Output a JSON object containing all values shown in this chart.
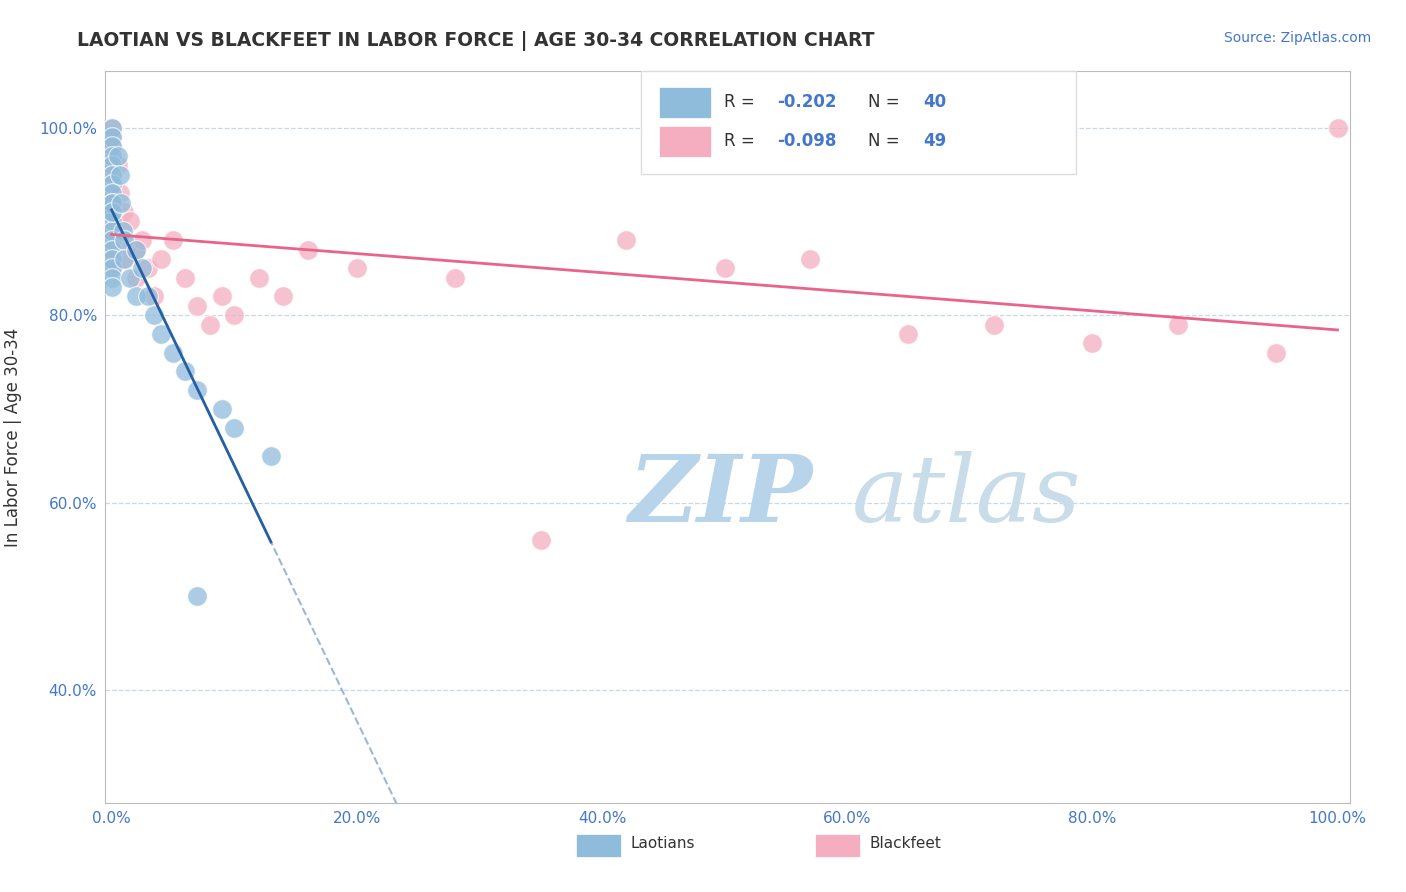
{
  "title": "LAOTIAN VS BLACKFEET IN LABOR FORCE | AGE 30-34 CORRELATION CHART",
  "source_text": "Source: ZipAtlas.com",
  "ylabel": "In Labor Force | Age 30-34",
  "xlim": [
    -0.005,
    1.01
  ],
  "ylim": [
    0.28,
    1.06
  ],
  "xticks": [
    0.0,
    0.2,
    0.4,
    0.6,
    0.8,
    1.0
  ],
  "xticklabels": [
    "0.0%",
    "20.0%",
    "40.0%",
    "60.0%",
    "80.0%",
    "100.0%"
  ],
  "yticks": [
    0.4,
    0.6,
    0.8,
    1.0
  ],
  "yticklabels": [
    "40.0%",
    "60.0%",
    "80.0%",
    "100.0%"
  ],
  "laotian_color": "#8fbcdb",
  "blackfeet_color": "#f4aec0",
  "laotian_line_color": "#2660a4",
  "blackfeet_line_color": "#e8648a",
  "watermark_text_color": "#cce4f4",
  "R_laotian": -0.202,
  "N_laotian": 40,
  "R_blackfeet": -0.098,
  "N_blackfeet": 49,
  "lao_x": [
    0.0,
    0.0,
    0.0,
    0.0,
    0.0,
    0.0,
    0.0,
    0.0,
    0.0,
    0.0,
    0.0,
    0.0,
    0.0,
    0.0,
    0.0,
    0.0,
    0.0,
    0.0,
    0.0,
    0.0,
    0.005,
    0.007,
    0.008,
    0.009,
    0.01,
    0.01,
    0.015,
    0.02,
    0.02,
    0.025,
    0.03,
    0.035,
    0.04,
    0.05,
    0.06,
    0.07,
    0.09,
    0.1,
    0.13,
    0.07
  ],
  "lao_y": [
    1.0,
    0.99,
    0.98,
    0.97,
    0.96,
    0.95,
    0.94,
    0.93,
    0.92,
    0.91,
    0.9,
    0.89,
    0.88,
    0.87,
    0.86,
    0.85,
    0.84,
    0.83,
    0.92,
    0.91,
    0.97,
    0.95,
    0.92,
    0.89,
    0.88,
    0.86,
    0.84,
    0.87,
    0.82,
    0.85,
    0.82,
    0.8,
    0.78,
    0.76,
    0.74,
    0.72,
    0.7,
    0.68,
    0.65,
    0.5
  ],
  "bf_x": [
    0.0,
    0.0,
    0.0,
    0.0,
    0.0,
    0.0,
    0.0,
    0.0,
    0.0,
    0.0,
    0.0,
    0.0,
    0.0,
    0.0,
    0.0,
    0.0,
    0.005,
    0.007,
    0.01,
    0.01,
    0.012,
    0.015,
    0.02,
    0.02,
    0.025,
    0.03,
    0.035,
    0.04,
    0.05,
    0.06,
    0.07,
    0.08,
    0.09,
    0.1,
    0.12,
    0.14,
    0.16,
    0.2,
    0.28,
    0.35,
    0.42,
    0.5,
    0.57,
    0.65,
    0.72,
    0.8,
    0.87,
    0.95,
    1.0
  ],
  "bf_y": [
    1.0,
    0.99,
    0.98,
    0.97,
    0.96,
    0.95,
    0.94,
    0.93,
    0.92,
    0.91,
    0.9,
    0.89,
    0.88,
    0.87,
    0.86,
    0.85,
    0.96,
    0.93,
    0.91,
    0.88,
    0.86,
    0.9,
    0.87,
    0.84,
    0.88,
    0.85,
    0.82,
    0.86,
    0.88,
    0.84,
    0.81,
    0.79,
    0.82,
    0.8,
    0.84,
    0.82,
    0.87,
    0.85,
    0.84,
    0.56,
    0.88,
    0.85,
    0.86,
    0.78,
    0.79,
    0.77,
    0.79,
    0.76,
    1.0
  ]
}
